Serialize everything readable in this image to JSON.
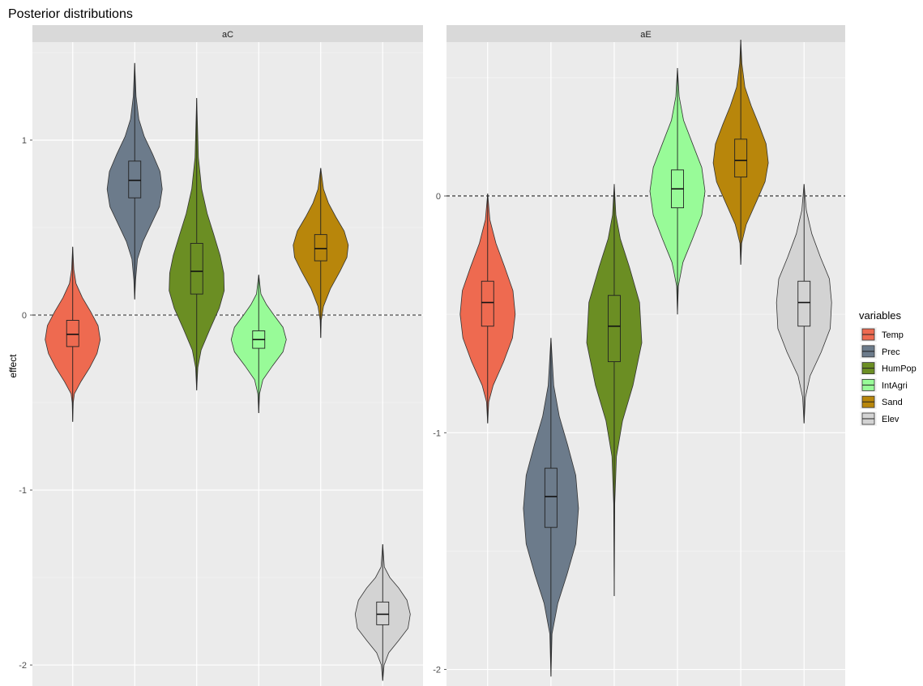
{
  "chart_data": {
    "type": "violin",
    "title": "Posterior distributions",
    "xlabel": "",
    "ylabel": "effect",
    "legend": {
      "title": "variables",
      "position": "right",
      "entries": [
        "Temp",
        "Prec",
        "HumPop",
        "IntAgri",
        "Sand",
        "Elev"
      ]
    },
    "colors": {
      "Temp": "#ee6a50",
      "Prec": "#6c7b8b",
      "HumPop": "#6b8e23",
      "IntAgri": "#98fb98",
      "Sand": "#b8860b",
      "Elev": "#d3d3d3"
    },
    "grid": true,
    "reference_line": 0,
    "panels": [
      {
        "strip": "aC",
        "ylim": [
          -2.12,
          1.56
        ],
        "ticks": [
          1,
          0,
          -1,
          -2
        ],
        "tick_labels": [
          "1",
          "0",
          "-1",
          "-2"
        ],
        "series": [
          {
            "name": "Temp",
            "min": -0.61,
            "max": 0.39,
            "q1": -0.18,
            "median": -0.11,
            "q3": -0.03,
            "shape": [
              [
                -0.61,
                0
              ],
              [
                -0.5,
                0.02
              ],
              [
                -0.45,
                0.06
              ],
              [
                -0.38,
                0.3
              ],
              [
                -0.3,
                0.62
              ],
              [
                -0.22,
                0.88
              ],
              [
                -0.14,
                1
              ],
              [
                -0.06,
                0.92
              ],
              [
                0.02,
                0.65
              ],
              [
                0.1,
                0.35
              ],
              [
                0.18,
                0.12
              ],
              [
                0.26,
                0.04
              ],
              [
                0.39,
                0
              ]
            ]
          },
          {
            "name": "Prec",
            "min": 0.09,
            "max": 1.44,
            "q1": 0.67,
            "median": 0.77,
            "q3": 0.88,
            "shape": [
              [
                0.09,
                0
              ],
              [
                0.2,
                0.03
              ],
              [
                0.32,
                0.1
              ],
              [
                0.42,
                0.3
              ],
              [
                0.52,
                0.6
              ],
              [
                0.62,
                0.9
              ],
              [
                0.72,
                1
              ],
              [
                0.82,
                0.92
              ],
              [
                0.92,
                0.65
              ],
              [
                1.02,
                0.35
              ],
              [
                1.12,
                0.15
              ],
              [
                1.25,
                0.05
              ],
              [
                1.44,
                0
              ]
            ]
          },
          {
            "name": "HumPop",
            "min": -0.43,
            "max": 1.24,
            "q1": 0.12,
            "median": 0.25,
            "q3": 0.41,
            "shape": [
              [
                -0.43,
                0
              ],
              [
                -0.3,
                0.04
              ],
              [
                -0.2,
                0.16
              ],
              [
                -0.08,
                0.48
              ],
              [
                0.04,
                0.82
              ],
              [
                0.14,
                1
              ],
              [
                0.24,
                0.98
              ],
              [
                0.34,
                0.85
              ],
              [
                0.46,
                0.62
              ],
              [
                0.58,
                0.38
              ],
              [
                0.72,
                0.18
              ],
              [
                0.9,
                0.06
              ],
              [
                1.24,
                0
              ]
            ]
          },
          {
            "name": "IntAgri",
            "min": -0.56,
            "max": 0.23,
            "q1": -0.19,
            "median": -0.14,
            "q3": -0.09,
            "shape": [
              [
                -0.56,
                0
              ],
              [
                -0.45,
                0.03
              ],
              [
                -0.37,
                0.15
              ],
              [
                -0.29,
                0.5
              ],
              [
                -0.21,
                0.88
              ],
              [
                -0.14,
                1
              ],
              [
                -0.07,
                0.88
              ],
              [
                0,
                0.55
              ],
              [
                0.06,
                0.28
              ],
              [
                0.12,
                0.08
              ],
              [
                0.23,
                0
              ]
            ]
          },
          {
            "name": "Sand",
            "min": -0.13,
            "max": 0.84,
            "q1": 0.31,
            "median": 0.38,
            "q3": 0.46,
            "shape": [
              [
                -0.13,
                0
              ],
              [
                -0.03,
                0.02
              ],
              [
                0.05,
                0.1
              ],
              [
                0.15,
                0.35
              ],
              [
                0.25,
                0.7
              ],
              [
                0.33,
                0.95
              ],
              [
                0.4,
                1
              ],
              [
                0.48,
                0.85
              ],
              [
                0.56,
                0.55
              ],
              [
                0.64,
                0.28
              ],
              [
                0.72,
                0.1
              ],
              [
                0.84,
                0
              ]
            ]
          },
          {
            "name": "Elev",
            "min": -2.09,
            "max": -1.31,
            "q1": -1.77,
            "median": -1.71,
            "q3": -1.64,
            "shape": [
              [
                -2.09,
                0
              ],
              [
                -2.0,
                0.05
              ],
              [
                -1.93,
                0.22
              ],
              [
                -1.86,
                0.58
              ],
              [
                -1.79,
                0.92
              ],
              [
                -1.71,
                1
              ],
              [
                -1.63,
                0.88
              ],
              [
                -1.56,
                0.58
              ],
              [
                -1.5,
                0.26
              ],
              [
                -1.44,
                0.06
              ],
              [
                -1.31,
                0
              ]
            ]
          }
        ]
      },
      {
        "strip": "aE",
        "ylim": [
          -2.07,
          0.65
        ],
        "ticks": [
          0,
          -1,
          -2
        ],
        "tick_labels": [
          "0",
          "-1",
          "-2"
        ],
        "series": [
          {
            "name": "Temp",
            "min": -0.96,
            "max": 0.01,
            "q1": -0.55,
            "median": -0.45,
            "q3": -0.36,
            "shape": [
              [
                -0.96,
                0
              ],
              [
                -0.87,
                0.04
              ],
              [
                -0.8,
                0.2
              ],
              [
                -0.7,
                0.58
              ],
              [
                -0.6,
                0.9
              ],
              [
                -0.5,
                1
              ],
              [
                -0.4,
                0.92
              ],
              [
                -0.3,
                0.62
              ],
              [
                -0.2,
                0.3
              ],
              [
                -0.1,
                0.08
              ],
              [
                0.01,
                0
              ]
            ]
          },
          {
            "name": "Prec",
            "min": -2.03,
            "max": -0.6,
            "q1": -1.4,
            "median": -1.27,
            "q3": -1.15,
            "shape": [
              [
                -2.03,
                0
              ],
              [
                -1.85,
                0.04
              ],
              [
                -1.72,
                0.25
              ],
              [
                -1.6,
                0.58
              ],
              [
                -1.47,
                0.9
              ],
              [
                -1.32,
                1
              ],
              [
                -1.18,
                0.9
              ],
              [
                -1.05,
                0.6
              ],
              [
                -0.93,
                0.3
              ],
              [
                -0.8,
                0.1
              ],
              [
                -0.6,
                0
              ]
            ]
          },
          {
            "name": "HumPop",
            "min": -1.69,
            "max": 0.05,
            "q1": -0.7,
            "median": -0.55,
            "q3": -0.42,
            "shape": [
              [
                -1.69,
                0
              ],
              [
                -1.3,
                0.02
              ],
              [
                -1.1,
                0.08
              ],
              [
                -0.95,
                0.3
              ],
              [
                -0.8,
                0.68
              ],
              [
                -0.62,
                1
              ],
              [
                -0.45,
                0.92
              ],
              [
                -0.3,
                0.55
              ],
              [
                -0.18,
                0.22
              ],
              [
                -0.08,
                0.06
              ],
              [
                0.05,
                0
              ]
            ]
          },
          {
            "name": "IntAgri",
            "min": -0.5,
            "max": 0.54,
            "q1": -0.05,
            "median": 0.03,
            "q3": 0.11,
            "shape": [
              [
                -0.5,
                0
              ],
              [
                -0.38,
                0.03
              ],
              [
                -0.28,
                0.2
              ],
              [
                -0.18,
                0.55
              ],
              [
                -0.08,
                0.88
              ],
              [
                0.02,
                1
              ],
              [
                0.12,
                0.88
              ],
              [
                0.22,
                0.55
              ],
              [
                0.32,
                0.22
              ],
              [
                0.42,
                0.06
              ],
              [
                0.54,
                0
              ]
            ]
          },
          {
            "name": "Sand",
            "min": -0.29,
            "max": 0.66,
            "q1": 0.08,
            "median": 0.15,
            "q3": 0.24,
            "shape": [
              [
                -0.29,
                0
              ],
              [
                -0.2,
                0.03
              ],
              [
                -0.12,
                0.2
              ],
              [
                -0.02,
                0.58
              ],
              [
                0.06,
                0.88
              ],
              [
                0.14,
                1
              ],
              [
                0.22,
                0.92
              ],
              [
                0.3,
                0.66
              ],
              [
                0.38,
                0.38
              ],
              [
                0.46,
                0.15
              ],
              [
                0.56,
                0.04
              ],
              [
                0.66,
                0
              ]
            ]
          },
          {
            "name": "Elev",
            "min": -0.96,
            "max": 0.05,
            "q1": -0.55,
            "median": -0.45,
            "q3": -0.36,
            "shape": [
              [
                -0.96,
                0
              ],
              [
                -0.85,
                0.05
              ],
              [
                -0.76,
                0.22
              ],
              [
                -0.66,
                0.62
              ],
              [
                -0.56,
                0.95
              ],
              [
                -0.45,
                1
              ],
              [
                -0.35,
                0.92
              ],
              [
                -0.26,
                0.6
              ],
              [
                -0.16,
                0.28
              ],
              [
                -0.06,
                0.08
              ],
              [
                0.05,
                0
              ]
            ]
          }
        ]
      }
    ]
  }
}
